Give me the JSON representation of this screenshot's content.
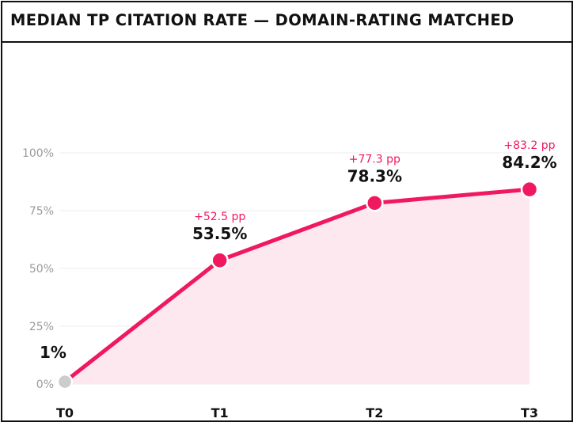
{
  "colors": {
    "accent": "#f0195f",
    "area_fill": "#fde8ef",
    "baseline_point": "#cccccc",
    "grid": "#ececec",
    "text": "#111111",
    "tick_text": "#9a9a9a"
  },
  "chart_data": {
    "type": "line",
    "title": "MEDIAN TP CITATION RATE — DOMAIN-RATING MATCHED",
    "categories": [
      "T0",
      "T1",
      "T2",
      "T3"
    ],
    "values": [
      1,
      53.5,
      78.3,
      84.2
    ],
    "value_labels": [
      "1%",
      "53.5%",
      "78.3%",
      "84.2%"
    ],
    "delta_labels": [
      "",
      "+52.5 pp",
      "+77.3 pp",
      "+83.2 pp"
    ],
    "ylim": [
      0,
      100
    ],
    "yticks": [
      0,
      25,
      50,
      75,
      100
    ],
    "ytick_labels": [
      "0%",
      "25%",
      "50%",
      "75%",
      "100%"
    ],
    "xlabel": "",
    "ylabel": "",
    "grid": true,
    "area_fill": true
  }
}
